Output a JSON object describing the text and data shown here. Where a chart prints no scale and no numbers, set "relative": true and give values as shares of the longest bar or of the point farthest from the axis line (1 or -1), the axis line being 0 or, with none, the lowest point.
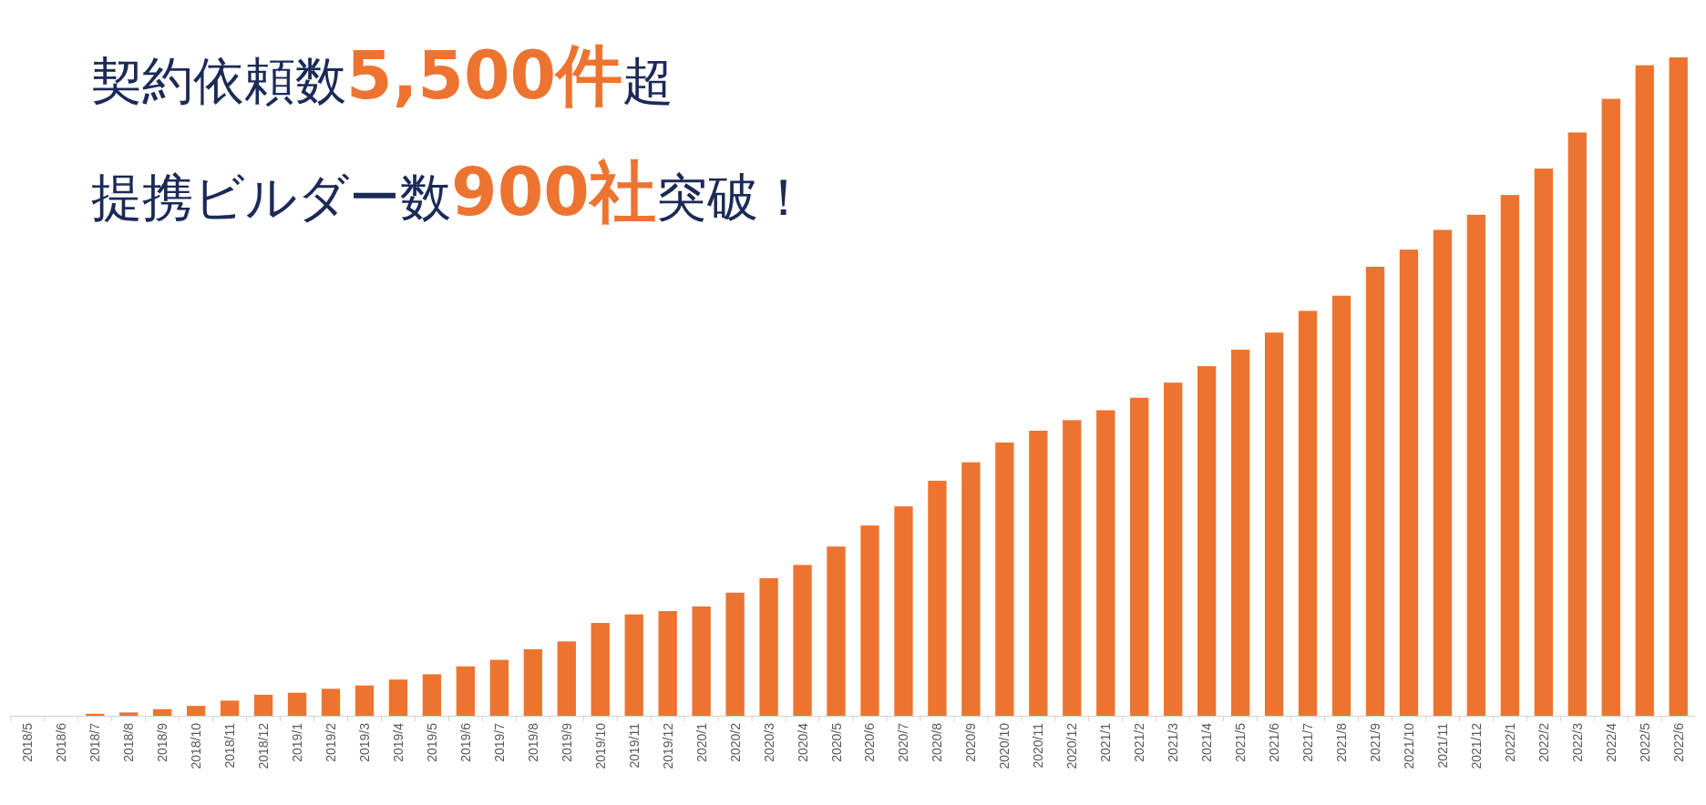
{
  "chart_data": {
    "type": "bar",
    "title": "契約依頼数5,500件超",
    "subtitle": "提携ビルダー数900社突破！",
    "relative": true,
    "color": "#ed7430",
    "categories": [
      "2018/5",
      "2018/6",
      "2018/7",
      "2018/8",
      "2018/9",
      "2018/10",
      "2018/11",
      "2018/12",
      "2019/1",
      "2019/2",
      "2019/3",
      "2019/4",
      "2019/5",
      "2019/6",
      "2019/7",
      "2019/8",
      "2019/9",
      "2019/10",
      "2019/11",
      "2019/12",
      "2020/1",
      "2020/2",
      "2020/3",
      "2020/4",
      "2020/5",
      "2020/6",
      "2020/7",
      "2020/8",
      "2020/9",
      "2020/10",
      "2020/11",
      "2020/12",
      "2021/1",
      "2021/2",
      "2021/3",
      "2021/4",
      "2021/5",
      "2021/6",
      "2021/7",
      "2021/8",
      "2021/9",
      "2021/10",
      "2021/11",
      "2021/12",
      "2022/1",
      "2022/2",
      "2022/3",
      "2022/4",
      "2022/5",
      "2022/6"
    ],
    "values": [
      0,
      0,
      0.003,
      0.005,
      0.01,
      0.015,
      0.023,
      0.032,
      0.035,
      0.041,
      0.046,
      0.055,
      0.063,
      0.075,
      0.085,
      0.101,
      0.113,
      0.141,
      0.154,
      0.159,
      0.166,
      0.187,
      0.209,
      0.229,
      0.257,
      0.289,
      0.318,
      0.357,
      0.385,
      0.415,
      0.433,
      0.449,
      0.464,
      0.483,
      0.506,
      0.531,
      0.556,
      0.582,
      0.615,
      0.638,
      0.682,
      0.708,
      0.738,
      0.761,
      0.791,
      0.831,
      0.886,
      0.937,
      0.988,
      1
    ]
  }
}
